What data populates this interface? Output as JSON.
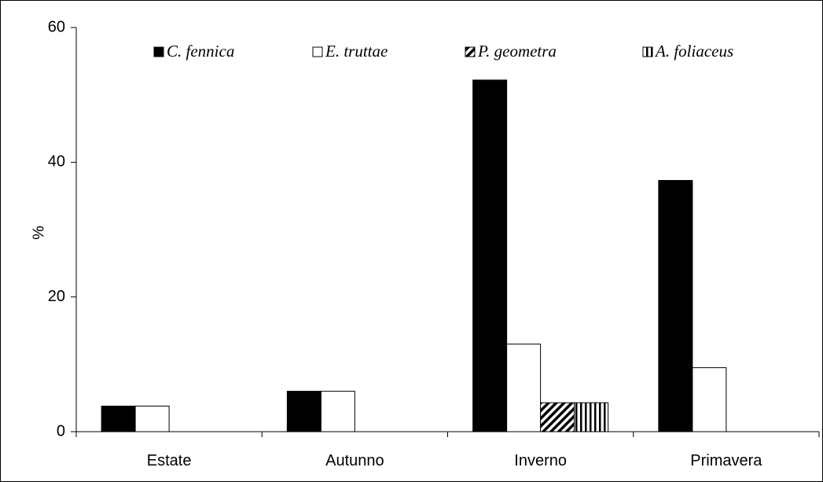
{
  "chart_data": {
    "type": "bar",
    "title": "",
    "xlabel": "",
    "ylabel": "%",
    "ylim": [
      0,
      60
    ],
    "yticks": [
      0,
      20,
      40,
      60
    ],
    "grid": false,
    "legend_position": "top",
    "categories": [
      "Estate",
      "Autunno",
      "Inverno",
      "Primavera"
    ],
    "series": [
      {
        "name": "C. fennica",
        "fill": "solid-black",
        "values": [
          3.8,
          6.0,
          52.2,
          37.3
        ]
      },
      {
        "name": "E. truttae",
        "fill": "white",
        "values": [
          3.8,
          6.0,
          13.0,
          9.5
        ]
      },
      {
        "name": "P. geometra",
        "fill": "diagonal-hatch",
        "values": [
          0,
          0,
          4.3,
          0
        ]
      },
      {
        "name": "A. foliaceus",
        "fill": "vertical-hatch",
        "values": [
          0,
          0,
          4.3,
          0
        ]
      }
    ]
  }
}
